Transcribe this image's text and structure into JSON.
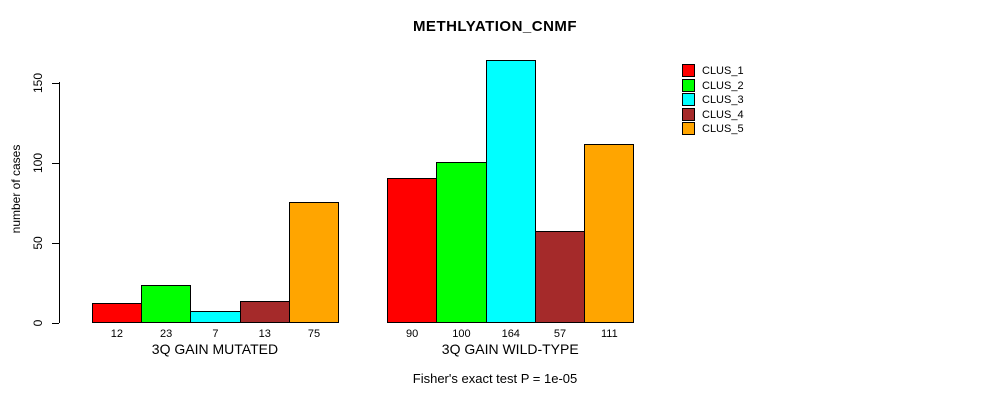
{
  "title": "METHLYATION_CNMF",
  "subtitle": "Fisher's exact test P = 1e-05",
  "y_axis": {
    "label": "number of cases",
    "ticks": [
      0,
      50,
      100,
      150
    ]
  },
  "chart_data": {
    "type": "bar",
    "title": "METHLYATION_CNMF",
    "xlabel": "",
    "ylabel": "number of cases",
    "ylim": [
      0,
      164
    ],
    "yticks": [
      0,
      50,
      100,
      150
    ],
    "grid": false,
    "legend_position": "right",
    "groups": [
      "3Q GAIN MUTATED",
      "3Q GAIN WILD-TYPE"
    ],
    "series": [
      {
        "name": "CLUS_1",
        "color": "#FF0000",
        "values": [
          12,
          90
        ]
      },
      {
        "name": "CLUS_2",
        "color": "#00FF00",
        "values": [
          23,
          100
        ]
      },
      {
        "name": "CLUS_3",
        "color": "#00FFFF",
        "values": [
          7,
          164
        ]
      },
      {
        "name": "CLUS_4",
        "color": "#A52A2A",
        "values": [
          13,
          57
        ]
      },
      {
        "name": "CLUS_5",
        "color": "#FFA500",
        "values": [
          75,
          111
        ]
      }
    ],
    "bar_value_labels": [
      [
        12,
        23,
        7,
        13,
        75
      ],
      [
        90,
        100,
        164,
        57,
        111
      ]
    ],
    "annotation": "Fisher's exact test P = 1e-05"
  }
}
